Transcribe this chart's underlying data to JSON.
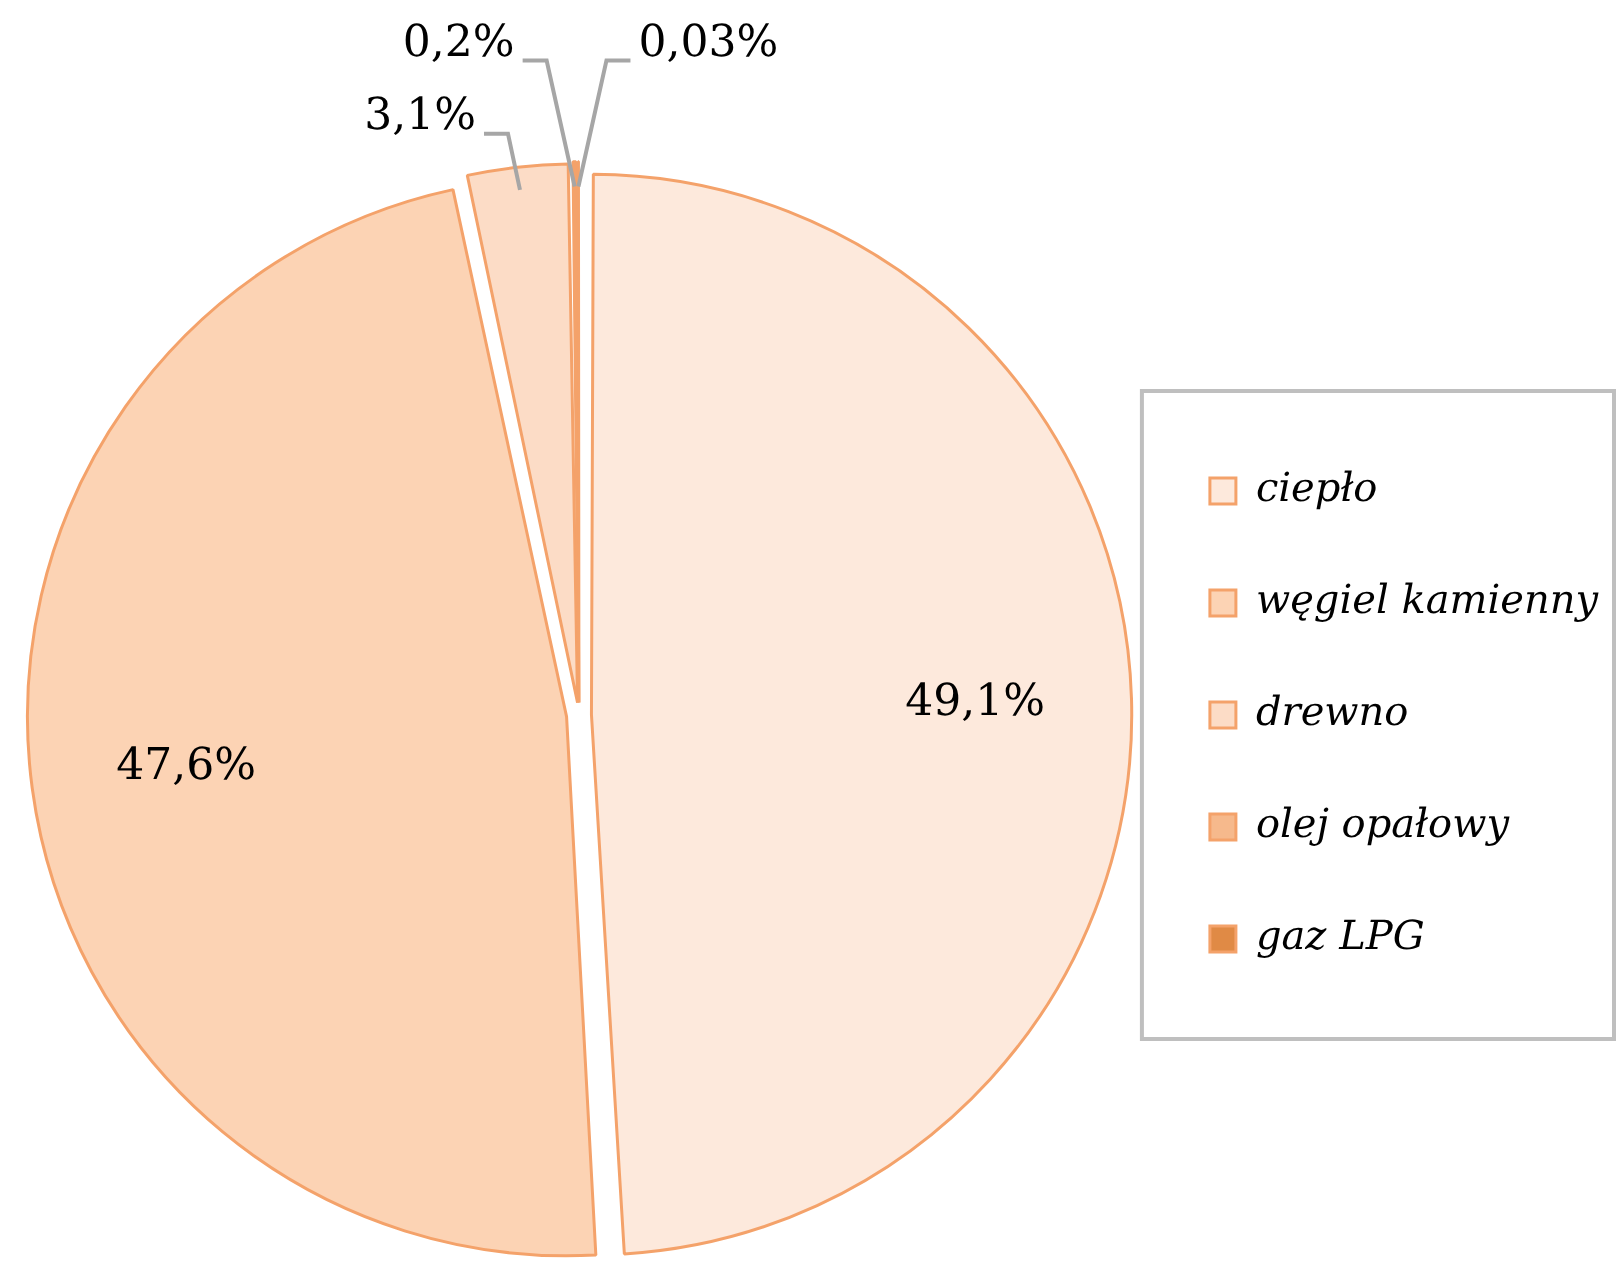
{
  "chart_data": {
    "type": "pie",
    "categories": [
      "ciepło",
      "węgiel kamienny",
      "drewno",
      "olej opałowy",
      "gaz LPG"
    ],
    "values": [
      49.1,
      47.6,
      3.1,
      0.2,
      0.03
    ],
    "colors": [
      "#fde9dc",
      "#fcd3b4",
      "#fcdcc6",
      "#f6b98c",
      "#e08a45"
    ],
    "value_labels": [
      "49,1%",
      "47,6%",
      "3,1%",
      "0,2%",
      "0,03%"
    ],
    "legend": "right"
  }
}
